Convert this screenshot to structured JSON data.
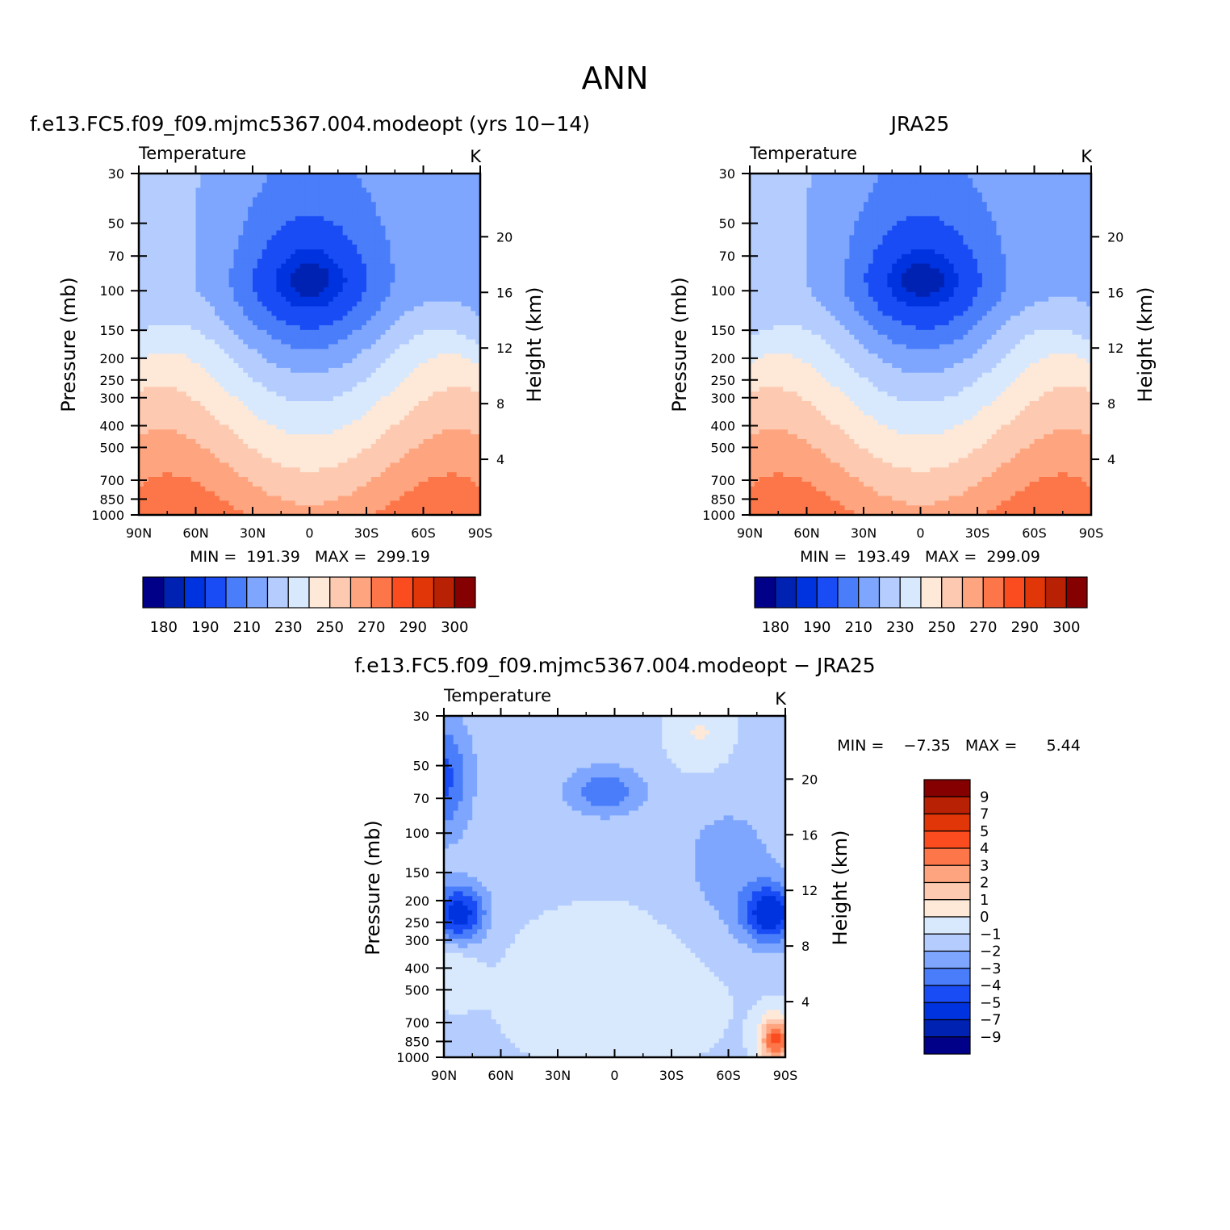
{
  "figure": {
    "title": "ANN"
  },
  "chart_data": [
    {
      "type": "contour",
      "title": "f.e13.FC5.f09_f09.mjmc5367.004.modeopt (yrs 10−14)",
      "variable": "Temperature",
      "units": "K",
      "xlabel": "",
      "ylabel": "Pressure (mb)",
      "y2label": "Height (km)",
      "x_ticks": [
        "90N",
        "60N",
        "30N",
        "0",
        "30S",
        "60S",
        "90S"
      ],
      "y_ticks": [
        "30",
        "50",
        "70",
        "100",
        "150",
        "200",
        "250",
        "300",
        "400",
        "500",
        "700",
        "850",
        "1000"
      ],
      "y_tick_values": [
        30,
        50,
        70,
        100,
        150,
        200,
        250,
        300,
        400,
        500,
        700,
        850,
        1000
      ],
      "y2_ticks": [
        "20",
        "16",
        "12",
        "8",
        "4"
      ],
      "y2_tick_values": [
        20,
        16,
        12,
        8,
        4
      ],
      "xlim": [
        90,
        -90
      ],
      "ylim_mb": [
        1000,
        30
      ],
      "min_text": "MIN =  191.39   MAX =  299.19",
      "min": 191.39,
      "max": 299.19,
      "contour_levels": [
        180,
        185,
        190,
        200,
        210,
        220,
        230,
        240,
        250,
        260,
        270,
        280,
        290,
        295,
        300
      ],
      "colorbar_labels": [
        "180",
        "190",
        "210",
        "230",
        "250",
        "270",
        "290",
        "300"
      ]
    },
    {
      "type": "contour",
      "title": "JRA25",
      "variable": "Temperature",
      "units": "K",
      "xlabel": "",
      "ylabel": "Pressure (mb)",
      "y2label": "Height (km)",
      "x_ticks": [
        "90N",
        "60N",
        "30N",
        "0",
        "30S",
        "60S",
        "90S"
      ],
      "y_ticks": [
        "30",
        "50",
        "70",
        "100",
        "150",
        "200",
        "250",
        "300",
        "400",
        "500",
        "700",
        "850",
        "1000"
      ],
      "y_tick_values": [
        30,
        50,
        70,
        100,
        150,
        200,
        250,
        300,
        400,
        500,
        700,
        850,
        1000
      ],
      "y2_ticks": [
        "20",
        "16",
        "12",
        "8",
        "4"
      ],
      "y2_tick_values": [
        20,
        16,
        12,
        8,
        4
      ],
      "xlim": [
        90,
        -90
      ],
      "ylim_mb": [
        1000,
        30
      ],
      "min_text": "MIN =  193.49   MAX =  299.09",
      "min": 193.49,
      "max": 299.09,
      "contour_levels": [
        180,
        185,
        190,
        200,
        210,
        220,
        230,
        240,
        250,
        260,
        270,
        280,
        290,
        295,
        300
      ],
      "colorbar_labels": [
        "180",
        "190",
        "210",
        "230",
        "250",
        "270",
        "290",
        "300"
      ]
    },
    {
      "type": "contour",
      "title": "f.e13.FC5.f09_f09.mjmc5367.004.modeopt − JRA25",
      "variable": "Temperature",
      "units": "K",
      "xlabel": "",
      "ylabel": "Pressure (mb)",
      "y2label": "Height (km)",
      "x_ticks": [
        "90N",
        "60N",
        "30N",
        "0",
        "30S",
        "60S",
        "90S"
      ],
      "y_ticks": [
        "30",
        "50",
        "70",
        "100",
        "150",
        "200",
        "250",
        "300",
        "400",
        "500",
        "700",
        "850",
        "1000"
      ],
      "y_tick_values": [
        30,
        50,
        70,
        100,
        150,
        200,
        250,
        300,
        400,
        500,
        700,
        850,
        1000
      ],
      "y2_ticks": [
        "20",
        "16",
        "12",
        "8",
        "4"
      ],
      "y2_tick_values": [
        20,
        16,
        12,
        8,
        4
      ],
      "xlim": [
        90,
        -90
      ],
      "ylim_mb": [
        1000,
        30
      ],
      "min_text": "MIN =    −7.35   MAX =      5.44",
      "min": -7.35,
      "max": 5.44,
      "contour_levels": [
        -9,
        -7,
        -5,
        -4,
        -3,
        -2,
        -1,
        0,
        1,
        2,
        3,
        4,
        5,
        7,
        9
      ],
      "colorbar_labels": [
        "9",
        "7",
        "5",
        "4",
        "3",
        "2",
        "1",
        "0",
        "−1",
        "−2",
        "−3",
        "−4",
        "−5",
        "−7",
        "−9"
      ]
    }
  ],
  "colors": {
    "palette": [
      "#000089",
      "#0022b2",
      "#0033e0",
      "#1a4cf5",
      "#4a7dfa",
      "#7ea6ff",
      "#b4cdfe",
      "#d8e9fd",
      "#fee8d8",
      "#fdc9b0",
      "#fea47e",
      "#fd7649",
      "#fb4c1f",
      "#e13607",
      "#b82104",
      "#850000"
    ]
  }
}
